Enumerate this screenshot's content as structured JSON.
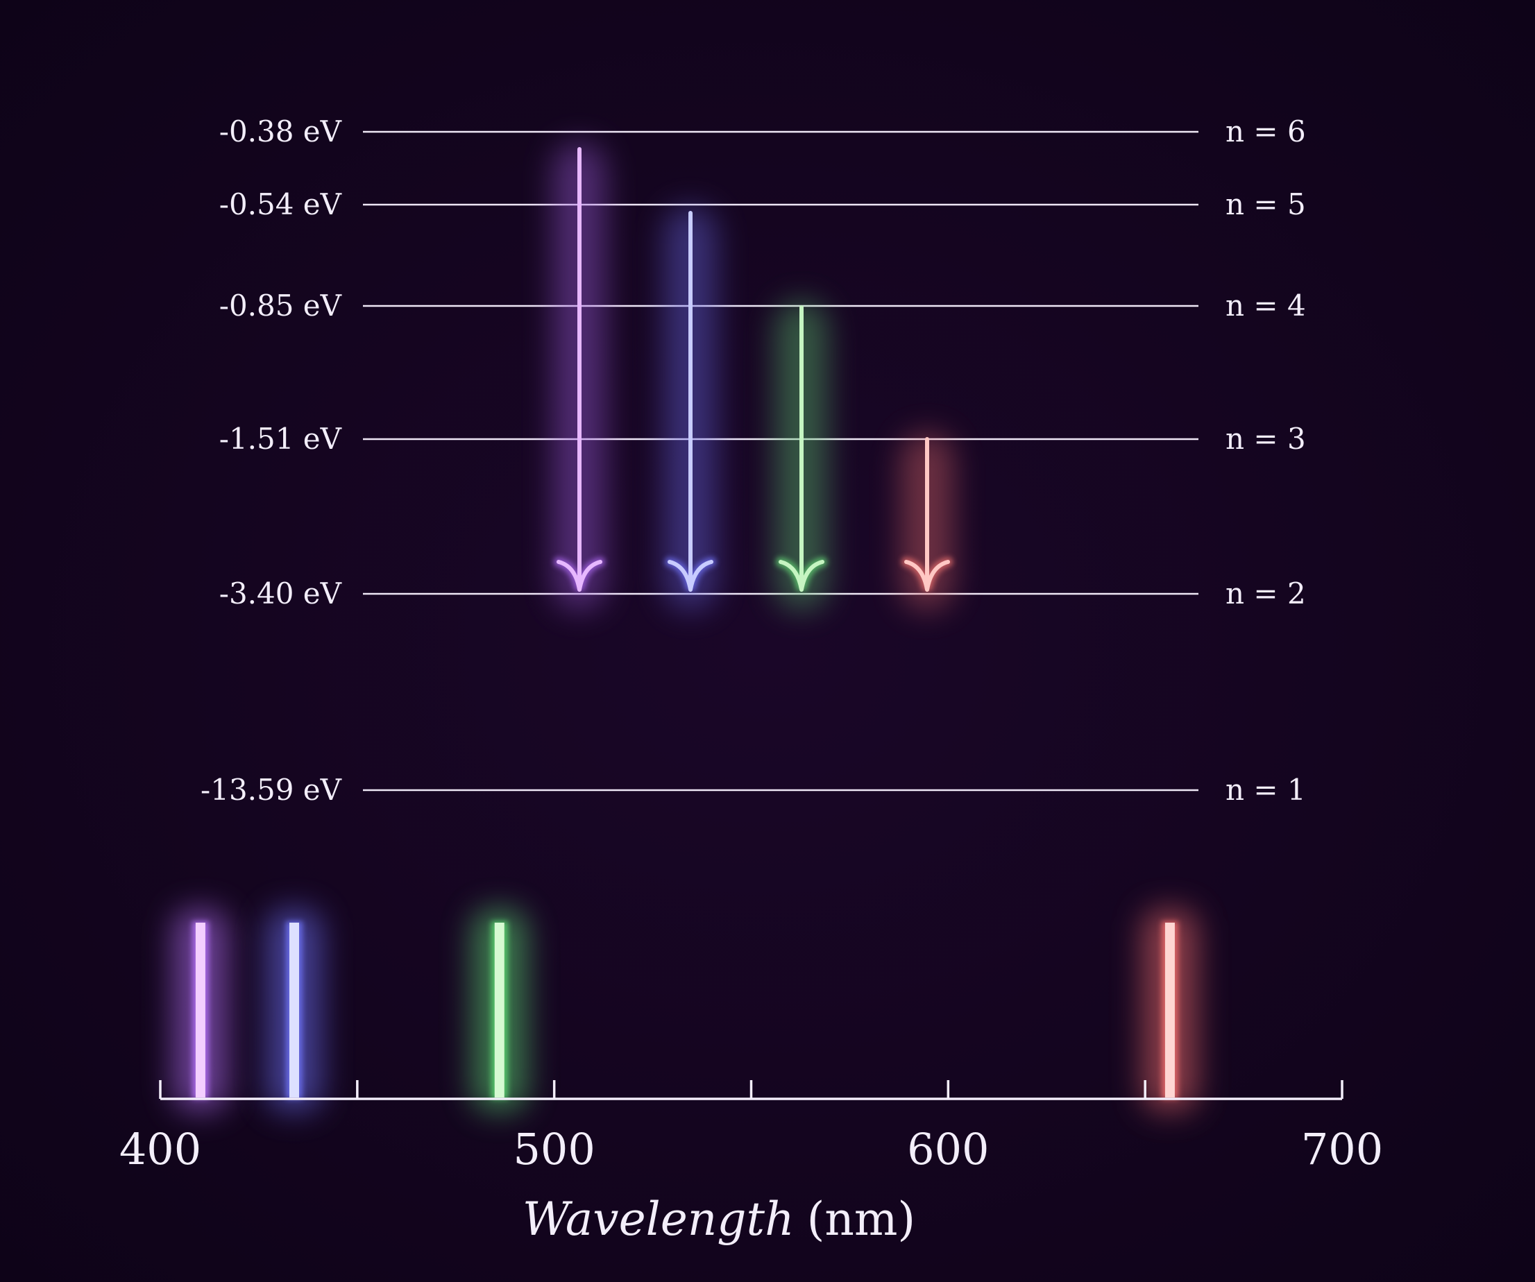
{
  "levels": [
    {
      "n": 6,
      "energy": -0.38,
      "energy_label": "-0.38 eV",
      "state_label": "n = 6"
    },
    {
      "n": 5,
      "energy": -0.54,
      "energy_label": "-0.54 eV",
      "state_label": "n = 5"
    },
    {
      "n": 4,
      "energy": -0.85,
      "energy_label": "-0.85 eV",
      "state_label": "n = 4"
    },
    {
      "n": 3,
      "energy": -1.51,
      "energy_label": "-1.51 eV",
      "state_label": "n = 3"
    },
    {
      "n": 2,
      "energy": -3.4,
      "energy_label": "-3.40 eV",
      "state_label": "n = 2"
    },
    {
      "n": 1,
      "energy": -13.59,
      "energy_label": "-13.59 eV",
      "state_label": "n = 1"
    }
  ],
  "transitions": [
    {
      "from": 6,
      "to": 2,
      "color": "#e7b8ff",
      "glow": "#a060e0"
    },
    {
      "from": 5,
      "to": 2,
      "color": "#c8ccff",
      "glow": "#6a6ae8"
    },
    {
      "from": 4,
      "to": 2,
      "color": "#c6f5c2",
      "glow": "#5fc870"
    },
    {
      "from": 3,
      "to": 2,
      "color": "#ffc8c4",
      "glow": "#e06a6a"
    }
  ],
  "spectrum": {
    "axis": {
      "min": 400,
      "max": 700,
      "major_ticks": [
        400,
        500,
        600,
        700
      ],
      "minor_ticks": [
        450,
        550,
        650
      ],
      "tick_labels": [
        "400",
        "500",
        "600",
        "700"
      ],
      "xlabel_italic": "Wavelength",
      "xlabel_unit": "(nm)"
    },
    "lines": [
      {
        "wavelength": 410.2,
        "color": "#f3cfff",
        "glow": "#b070f0"
      },
      {
        "wavelength": 434.0,
        "color": "#dde0ff",
        "glow": "#6c70f0"
      },
      {
        "wavelength": 486.1,
        "color": "#d6fad2",
        "glow": "#5ad070"
      },
      {
        "wavelength": 656.3,
        "color": "#ffd6d2",
        "glow": "#e86a6a"
      }
    ]
  }
}
